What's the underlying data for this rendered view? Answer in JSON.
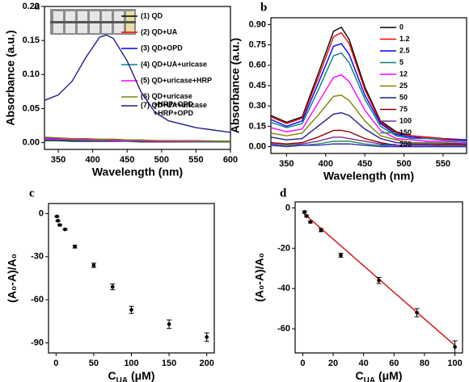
{
  "chart_data": [
    {
      "type": "line",
      "label": "a",
      "x_label": "Wavelength (nm)",
      "y_label": "Absorbance (a.u.)",
      "x": [
        330,
        350,
        370,
        390,
        410,
        420,
        430,
        450,
        470,
        490,
        510,
        550,
        600
      ],
      "xlim": [
        330,
        600
      ],
      "xticks": [
        350,
        400,
        450,
        500,
        550,
        600
      ],
      "ylim": [
        -0.01,
        0.2
      ],
      "yticks": [
        {
          "value": 0,
          "label": "0.00"
        },
        {
          "value": 0.05,
          "label": "0.05"
        },
        {
          "value": 0.1,
          "label": "0.10"
        },
        {
          "value": 0.15,
          "label": "0.15"
        },
        {
          "value": 0.2,
          "label": "0.20"
        }
      ],
      "series": [
        {
          "name": "(1) QD",
          "color": "#000000",
          "values": [
            0.003,
            0.003,
            0.002,
            0.002,
            0.002,
            0.002,
            0.002,
            0.002,
            0.001,
            0.001,
            0.001,
            0.001,
            0.001
          ]
        },
        {
          "name": "(2) QD+UA",
          "color": "#ff0000",
          "values": [
            0.005,
            0.004,
            0.004,
            0.003,
            0.003,
            0.003,
            0.003,
            0.003,
            0.002,
            0.002,
            0.002,
            0.002,
            0.002
          ]
        },
        {
          "name": "(3) QD+OPD",
          "color": "#0000ff",
          "values": [
            0.007,
            0.006,
            0.005,
            0.005,
            0.004,
            0.004,
            0.004,
            0.003,
            0.003,
            0.003,
            0.002,
            0.002,
            0.002
          ]
        },
        {
          "name": "(4) QD+UA+uricase",
          "color": "#008080",
          "values": [
            0.004,
            0.004,
            0.003,
            0.003,
            0.003,
            0.003,
            0.003,
            0.002,
            0.002,
            0.002,
            0.002,
            0.001,
            0.001
          ]
        },
        {
          "name": "(5) QD+uricase+HRP",
          "color": "#ff00ff",
          "values": [
            0.006,
            0.005,
            0.005,
            0.004,
            0.004,
            0.004,
            0.003,
            0.003,
            0.003,
            0.002,
            0.002,
            0.002,
            0.002
          ]
        },
        {
          "name": "(6) QD+uricase\n+HRP+OPD",
          "color": "#808000",
          "values": [
            0.008,
            0.007,
            0.006,
            0.006,
            0.005,
            0.005,
            0.005,
            0.004,
            0.004,
            0.003,
            0.003,
            0.003,
            0.002
          ]
        },
        {
          "name": "(7) QD+UA+uricase\n+HRP+OPD",
          "color": "#1f1f8f",
          "values": [
            0.062,
            0.07,
            0.09,
            0.125,
            0.155,
            0.158,
            0.153,
            0.12,
            0.075,
            0.045,
            0.032,
            0.022,
            0.015
          ]
        }
      ]
    },
    {
      "type": "line",
      "label": "b",
      "x_label": "Wavelength (nm)",
      "y_label": "Absorbance (a.u.)",
      "x": [
        330,
        350,
        370,
        390,
        410,
        420,
        430,
        450,
        470,
        490,
        510,
        530,
        550,
        580
      ],
      "xlim": [
        330,
        580
      ],
      "xticks": [
        350,
        400,
        450,
        500,
        550
      ],
      "ylim": [
        -0.05,
        0.95
      ],
      "yticks": [
        {
          "value": 0,
          "label": "0.00"
        },
        {
          "value": 0.15,
          "label": "0.15"
        },
        {
          "value": 0.3,
          "label": "0.30"
        },
        {
          "value": 0.45,
          "label": "0.45"
        },
        {
          "value": 0.6,
          "label": "0.60"
        },
        {
          "value": 0.75,
          "label": "0.75"
        },
        {
          "value": 0.9,
          "label": "0.90"
        }
      ],
      "series": [
        {
          "name": "0",
          "color": "#000000",
          "values": [
            0.23,
            0.18,
            0.22,
            0.53,
            0.85,
            0.88,
            0.79,
            0.44,
            0.19,
            0.11,
            0.08,
            0.07,
            0.06,
            0.05
          ]
        },
        {
          "name": "1.2",
          "color": "#ff0000",
          "values": [
            0.22,
            0.17,
            0.21,
            0.5,
            0.81,
            0.84,
            0.76,
            0.42,
            0.18,
            0.1,
            0.08,
            0.07,
            0.06,
            0.05
          ]
        },
        {
          "name": "2.5",
          "color": "#0000ff",
          "values": [
            0.2,
            0.15,
            0.19,
            0.46,
            0.74,
            0.76,
            0.68,
            0.38,
            0.17,
            0.09,
            0.07,
            0.06,
            0.05,
            0.05
          ]
        },
        {
          "name": "5",
          "color": "#008080",
          "values": [
            0.18,
            0.14,
            0.17,
            0.41,
            0.67,
            0.69,
            0.62,
            0.35,
            0.15,
            0.08,
            0.06,
            0.06,
            0.05,
            0.04
          ]
        },
        {
          "name": "12",
          "color": "#ff00ff",
          "values": [
            0.14,
            0.11,
            0.13,
            0.32,
            0.51,
            0.53,
            0.48,
            0.27,
            0.12,
            0.06,
            0.05,
            0.04,
            0.04,
            0.03
          ]
        },
        {
          "name": "25",
          "color": "#808000",
          "values": [
            0.1,
            0.08,
            0.1,
            0.23,
            0.37,
            0.38,
            0.34,
            0.19,
            0.08,
            0.05,
            0.03,
            0.03,
            0.03,
            0.02
          ]
        },
        {
          "name": "50",
          "color": "#1f1f8f",
          "values": [
            0.07,
            0.05,
            0.06,
            0.15,
            0.24,
            0.25,
            0.23,
            0.13,
            0.06,
            0.03,
            0.02,
            0.02,
            0.02,
            0.02
          ]
        },
        {
          "name": "75",
          "color": "#8b0000",
          "values": [
            0.03,
            0.02,
            0.03,
            0.07,
            0.12,
            0.12,
            0.11,
            0.06,
            0.03,
            0.01,
            0.01,
            0.01,
            0.01,
            0.01
          ]
        },
        {
          "name": "100",
          "color": "#7b2f8e",
          "values": [
            0.02,
            0.01,
            0.02,
            0.04,
            0.07,
            0.07,
            0.06,
            0.04,
            0.02,
            0.01,
            0.01,
            0.01,
            0,
            0
          ]
        },
        {
          "name": "150",
          "color": "#2e8b57",
          "values": [
            0.01,
            0.01,
            0.01,
            0.02,
            0.04,
            0.04,
            0.04,
            0.02,
            0.01,
            0,
            0,
            0,
            0,
            0
          ]
        },
        {
          "name": "200",
          "color": "#3030c0",
          "values": [
            0.01,
            0,
            0.01,
            0.01,
            0.02,
            0.02,
            0.02,
            0.01,
            0,
            0,
            0,
            0,
            0,
            0
          ]
        }
      ]
    },
    {
      "type": "scatter",
      "label": "c",
      "x_label": [
        "C",
        "UA",
        " (μM)"
      ],
      "y_label": "(A₀-A)/A₀",
      "x": [
        1.2,
        2.5,
        5,
        12,
        25,
        50,
        75,
        100,
        150,
        200
      ],
      "values": [
        -2,
        -5,
        -8,
        -11,
        -23,
        -36,
        -51,
        -67,
        -77,
        -86
      ],
      "errors": [
        0.5,
        0.5,
        0.5,
        0.5,
        1,
        1.5,
        2,
        2.5,
        3,
        3
      ],
      "color": "#000000",
      "xlim": [
        -10,
        210
      ],
      "xticks": [
        0,
        50,
        100,
        150,
        200
      ],
      "ylim": [
        -97,
        7
      ],
      "yticks": [
        0,
        -30,
        -60,
        -90
      ]
    },
    {
      "type": "scatter",
      "label": "d",
      "x_label": [
        "C",
        "UA",
        " (μM)"
      ],
      "y_label": "(A₀-A)/A₀",
      "x": [
        1.2,
        2.5,
        5,
        12,
        25,
        50,
        75,
        100
      ],
      "values": [
        -2,
        -4,
        -7,
        -11,
        -23.5,
        -36,
        -52,
        -69
      ],
      "errors": [
        0.5,
        0.5,
        0.5,
        0.8,
        1,
        1.5,
        2,
        3
      ],
      "color": "#000000",
      "fit": {
        "x": [
          0,
          100
        ],
        "y": [
          -2.3,
          -68.3
        ],
        "color": "#d62728"
      },
      "xlim": [
        -5,
        105
      ],
      "xticks": [
        0,
        20,
        40,
        60,
        80,
        100
      ],
      "ylim": [
        -72,
        3
      ],
      "yticks": [
        0,
        -20,
        -40,
        -60
      ]
    }
  ]
}
